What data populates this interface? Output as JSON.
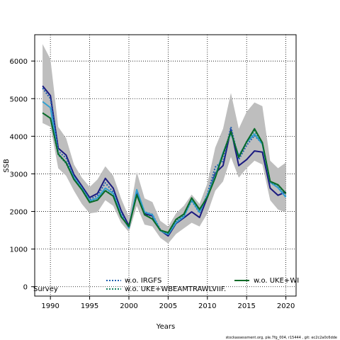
{
  "chart_data": {
    "type": "line",
    "xlabel": "Years",
    "ylabel": "SSB",
    "xlim": [
      1988,
      2021.3
    ],
    "ylim": [
      -250,
      6700
    ],
    "xticks": [
      1990,
      1995,
      2000,
      2005,
      2010,
      2015,
      2020
    ],
    "yticks": [
      0,
      1000,
      2000,
      3000,
      4000,
      5000,
      6000
    ],
    "grid": true,
    "grid_style": "dotted",
    "x": [
      1989,
      1990,
      1991,
      1992,
      1993,
      1994,
      1995,
      1996,
      1997,
      1998,
      1999,
      2000,
      2001,
      2002,
      2003,
      2004,
      2005,
      2006,
      2007,
      2008,
      2009,
      2010,
      2011,
      2012,
      2013,
      2014,
      2015,
      2016,
      2017,
      2018,
      2019,
      2020
    ],
    "band": {
      "lower": [
        4350,
        4250,
        3150,
        2950,
        2550,
        2200,
        1950,
        1980,
        2300,
        2150,
        1700,
        1450,
        2150,
        1650,
        1600,
        1300,
        1150,
        1400,
        1550,
        1700,
        1600,
        1950,
        2550,
        2800,
        3450,
        2900,
        3150,
        3350,
        3250,
        2300,
        2050,
        1980
      ],
      "upper": [
        6450,
        6050,
        4250,
        3950,
        3250,
        2900,
        2650,
        2850,
        3200,
        2950,
        2350,
        1850,
        3050,
        2350,
        2250,
        1750,
        1600,
        1950,
        2150,
        2450,
        2200,
        2750,
        3700,
        4200,
        5150,
        4200,
        4650,
        4900,
        4800,
        3350,
        3150,
        3300
      ],
      "color": "#bebebe"
    },
    "series": [
      {
        "name": "",
        "color": "#1a1a80",
        "values": [
          5340,
          5080,
          3680,
          3500,
          2980,
          2680,
          2370,
          2480,
          2880,
          2620,
          2030,
          1620,
          2480,
          1940,
          1880,
          1500,
          1350,
          1680,
          1830,
          1990,
          1840,
          2380,
          3020,
          3220,
          4180,
          3220,
          3380,
          3610,
          3580,
          2620,
          2430,
          2520
        ]
      },
      {
        "name": "w.o. IRGFS",
        "color": "#2060b0",
        "style": "dotted",
        "values": [
          5280,
          5000,
          3600,
          3420,
          2930,
          2640,
          2320,
          2420,
          2760,
          2520,
          1960,
          1580,
          2560,
          1990,
          1920,
          1520,
          1380,
          1720,
          1870,
          2290,
          1960,
          2460,
          3180,
          3340,
          4250,
          3380,
          3760,
          4020,
          3800,
          2770,
          2640,
          2400
        ]
      },
      {
        "name": "",
        "color": "#30a0d0",
        "values": [
          4920,
          4760,
          3520,
          3300,
          2900,
          2610,
          2280,
          2360,
          2620,
          2480,
          1900,
          1560,
          2580,
          1980,
          1910,
          1490,
          1390,
          1700,
          1860,
          2310,
          1980,
          2430,
          2950,
          3560,
          4080,
          3480,
          3840,
          4060,
          3790,
          2780,
          2630,
          2380
        ]
      },
      {
        "name": "w.o. UKE+WBEAMTRAWLVIIF.",
        "color": "#188060",
        "style": "dotted",
        "values": [
          4620,
          4480,
          3510,
          3280,
          2860,
          2590,
          2250,
          2310,
          2560,
          2420,
          1870,
          1590,
          2460,
          1920,
          1810,
          1500,
          1420,
          1770,
          1910,
          2340,
          2040,
          2390,
          2920,
          3540,
          4120,
          3450,
          3860,
          4150,
          3820,
          2790,
          2690,
          2470
        ]
      },
      {
        "name": "w.o. UKE+WI",
        "color": "#0a6a28",
        "values": [
          4620,
          4480,
          3530,
          3300,
          2850,
          2580,
          2240,
          2300,
          2550,
          2410,
          1860,
          1600,
          2440,
          1910,
          1800,
          1500,
          1440,
          1790,
          1930,
          2360,
          2060,
          2380,
          2900,
          3520,
          4120,
          3440,
          3850,
          4200,
          3830,
          2800,
          2710,
          2480
        ]
      }
    ],
    "legend_rows": [
      {
        "label": "Survey",
        "swatch": ""
      },
      {
        "label": "w.o. IRGFS",
        "swatch": "dotted-blue"
      },
      {
        "label": "w.o. UKE+WBEAMTRAWLVIIF.",
        "swatch": "dotted-green"
      },
      {
        "label": "w.o. UKE+WI",
        "swatch": "solid-green"
      }
    ],
    "footer": "stockassessment.org, ple.7fg_004, r15444 , git: ec2c2a0c6dde"
  }
}
